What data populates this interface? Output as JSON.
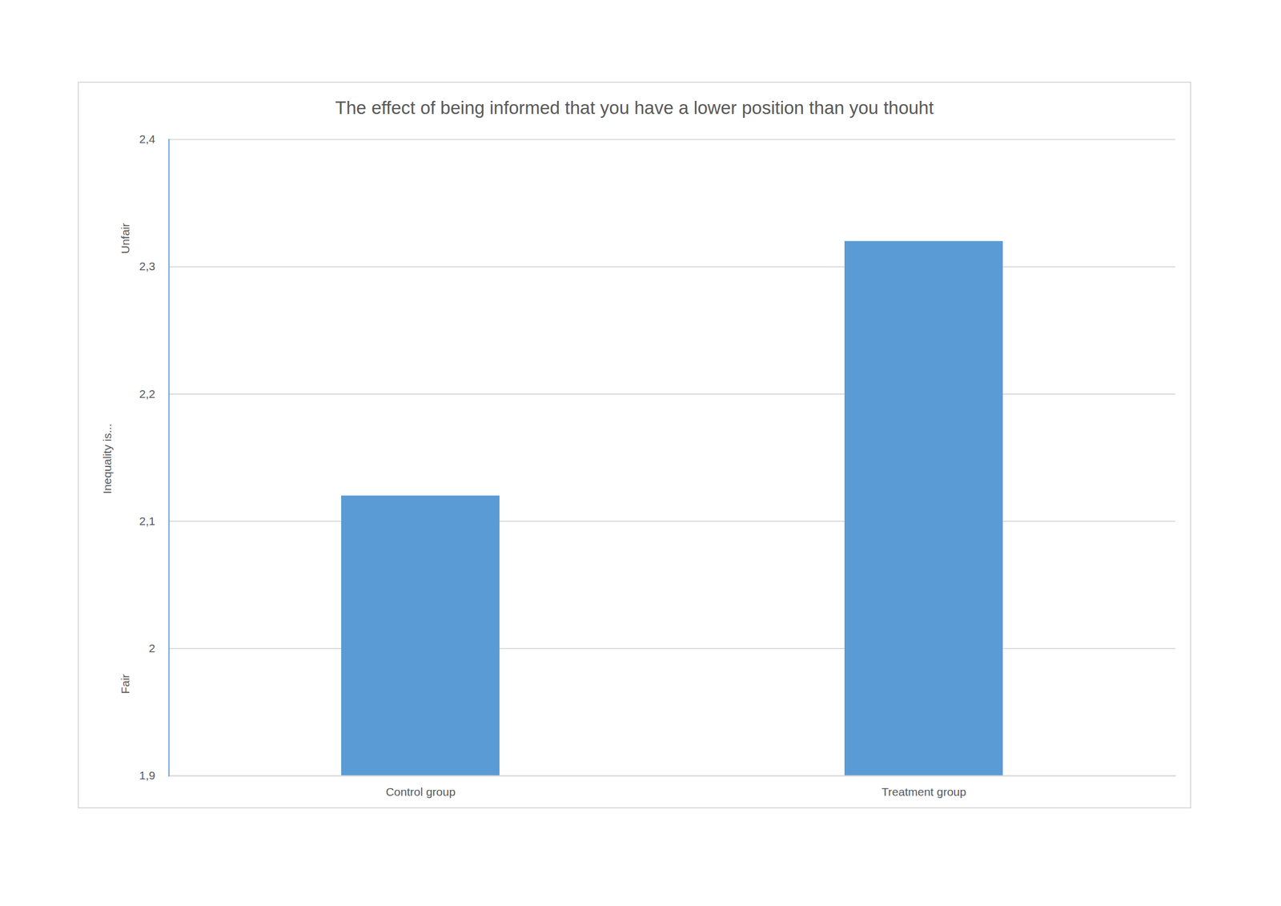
{
  "chart_data": {
    "type": "bar",
    "title": "The effect of being informed that you have a lower position than you thouht",
    "y_label": "Inequality is...",
    "annotations": [
      "Unfair",
      "Fair"
    ],
    "categories": [
      "Control group",
      "Treatment group"
    ],
    "values": [
      2.12,
      2.32
    ],
    "color": "#5b9bd5",
    "ylim": [
      1.9,
      2.4
    ],
    "yticks": [
      {
        "value": 1.9,
        "label": "1,9"
      },
      2,
      {
        "value": 2.1,
        "label": "2,1"
      },
      {
        "value": 2.2,
        "label": "2,2"
      },
      {
        "value": 2.3,
        "label": "2,3"
      },
      {
        "value": 2.4,
        "label": "2,4"
      }
    ],
    "grid": true
  }
}
